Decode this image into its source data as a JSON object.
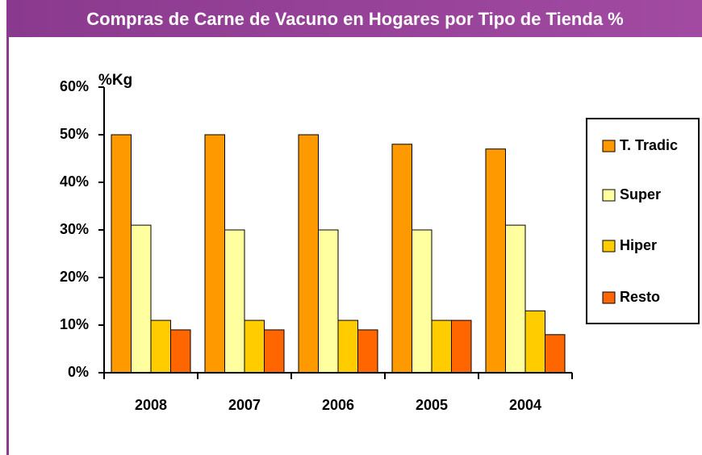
{
  "chart_data": {
    "type": "bar",
    "title": "Compras de Carne de Vacuno en Hogares por Tipo de Tienda %",
    "y_label": "%Kg",
    "categories": [
      "2008",
      "2007",
      "2006",
      "2005",
      "2004"
    ],
    "series": [
      {
        "name": "T. Tradic",
        "color": "#ff9900",
        "values": [
          50,
          50,
          50,
          48,
          47
        ]
      },
      {
        "name": "Super",
        "color": "#ffffa0",
        "values": [
          31,
          30,
          30,
          30,
          31
        ]
      },
      {
        "name": "Hiper",
        "color": "#ffcc00",
        "values": [
          11,
          11,
          11,
          11,
          13
        ]
      },
      {
        "name": "Resto",
        "color": "#ff6600",
        "values": [
          9,
          9,
          9,
          11,
          8
        ]
      }
    ],
    "ylim": [
      0,
      60
    ],
    "yticks": [
      {
        "value": 0,
        "label": "0%"
      },
      {
        "value": 10,
        "label": "10%"
      },
      {
        "value": 20,
        "label": "20%"
      },
      {
        "value": 30,
        "label": "30%"
      },
      {
        "value": 40,
        "label": "40%"
      },
      {
        "value": 50,
        "label": "50%"
      },
      {
        "value": 60,
        "label": "60%"
      }
    ],
    "legend": "right"
  }
}
